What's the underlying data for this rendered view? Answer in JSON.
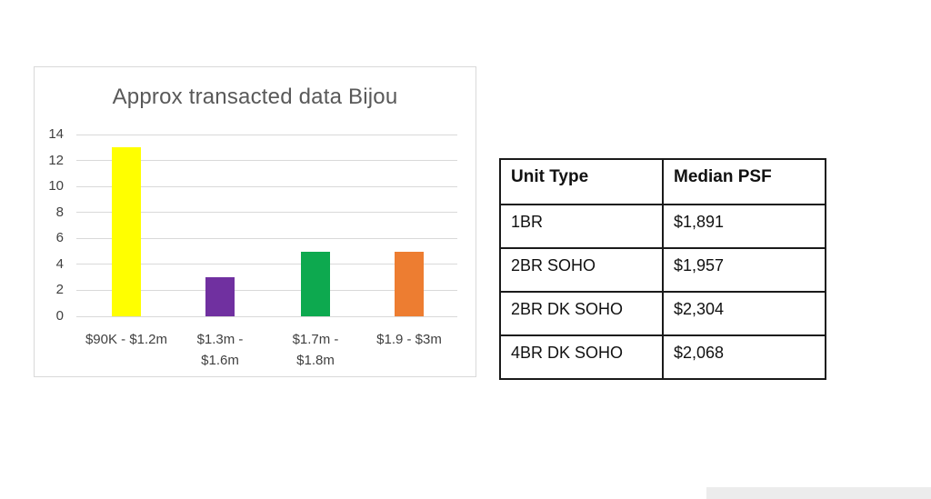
{
  "chart_data": {
    "type": "bar",
    "title": "Approx transacted data Bijou",
    "categories": [
      "$90K - $1.2m",
      "$1.3m - $1.6m",
      "$1.7m - $1.8m",
      "$1.9 - $3m"
    ],
    "category_label_lines": [
      [
        "$90K - $1.2m"
      ],
      [
        "$1.3m -",
        "$1.6m"
      ],
      [
        "$1.7m -",
        "$1.8m"
      ],
      [
        "$1.9 - $3m"
      ]
    ],
    "values": [
      13,
      3,
      5,
      5
    ],
    "bar_colors": [
      "#ffff00",
      "#7030a0",
      "#0da94f",
      "#ed7d31"
    ],
    "xlabel": "",
    "ylabel": "",
    "ylim": [
      0,
      14
    ],
    "yticks": [
      0,
      2,
      4,
      6,
      8,
      10,
      12,
      14
    ],
    "grid": "horizontal",
    "legend": "none"
  },
  "table": {
    "headers": [
      "Unit Type",
      "Median PSF"
    ],
    "rows": [
      {
        "unit_type": "1BR",
        "median_psf": "$1,891"
      },
      {
        "unit_type": "2BR SOHO",
        "median_psf": "$1,957"
      },
      {
        "unit_type": "2BR DK SOHO",
        "median_psf": "$2,304"
      },
      {
        "unit_type": "4BR DK SOHO",
        "median_psf": "$2,068"
      }
    ]
  },
  "colors": {
    "title_text": "#595959",
    "axis_text": "#404040",
    "gridline": "#d9d9d9",
    "panel_border": "#d9d9d9",
    "table_border": "#1a1a1a",
    "bottom_strip": "#ececec"
  }
}
